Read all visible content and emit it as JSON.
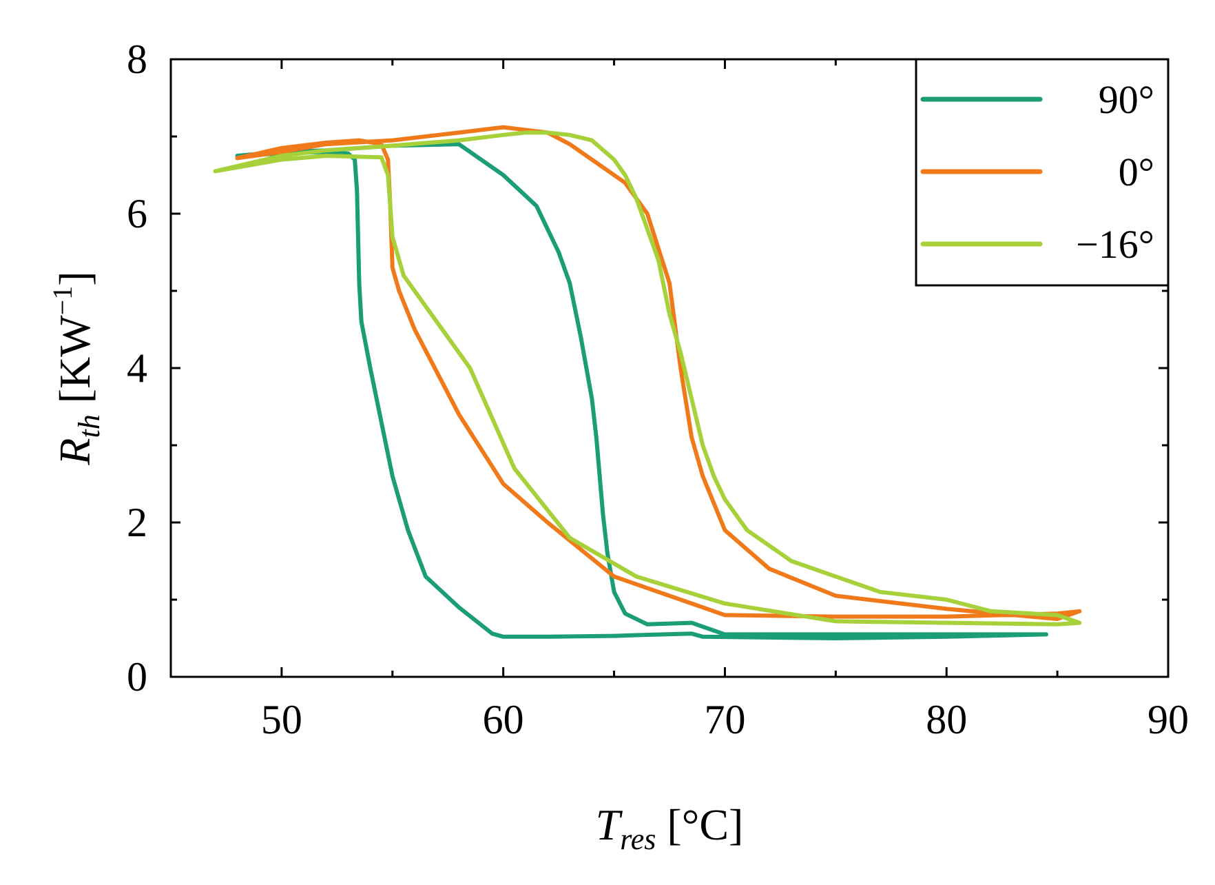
{
  "chart_data": {
    "type": "line",
    "title": "",
    "xlabel": {
      "main": "T",
      "sub": "res",
      "unit": " [°C]"
    },
    "ylabel": {
      "main": "R",
      "sub": "th",
      "unit": " [KW",
      "sup": "−1",
      "close": "]"
    },
    "xlim": [
      45,
      90
    ],
    "ylim": [
      0,
      8
    ],
    "xticks": [
      50,
      60,
      70,
      80,
      90
    ],
    "yticks": [
      0,
      2,
      4,
      6,
      8
    ],
    "x_minor_ticks": [
      55,
      65,
      75,
      85
    ],
    "y_minor_ticks": [
      1,
      3,
      5,
      7
    ],
    "grid": false,
    "legend_position": "top-right",
    "series": [
      {
        "name": "90°",
        "color": "#1b9e77",
        "x": [
          48,
          50,
          52,
          53,
          53.3,
          53.4,
          53.5,
          53.6,
          54,
          55,
          55.7,
          56.5,
          58,
          59.5,
          60,
          62,
          65,
          66,
          68.5,
          69,
          75,
          80,
          84.5,
          84.5,
          80,
          75,
          70,
          68.5,
          68.5,
          66.5,
          65.5,
          65,
          64.7,
          64.5,
          64.2,
          64,
          63.5,
          63,
          62.5,
          61.5,
          60,
          58,
          55,
          52,
          50,
          48
        ],
        "y": [
          6.75,
          6.78,
          6.8,
          6.78,
          6.7,
          6.3,
          5.1,
          4.6,
          4.0,
          2.6,
          1.9,
          1.3,
          0.9,
          0.56,
          0.52,
          0.52,
          0.53,
          0.54,
          0.56,
          0.52,
          0.5,
          0.52,
          0.55,
          0.55,
          0.55,
          0.55,
          0.55,
          0.7,
          0.7,
          0.68,
          0.82,
          1.1,
          1.6,
          2.1,
          3.1,
          3.6,
          4.4,
          5.1,
          5.5,
          6.1,
          6.5,
          6.9,
          6.88,
          6.82,
          6.8,
          6.75
        ]
      },
      {
        "name": "0°",
        "color": "#f07a1a",
        "x": [
          48,
          50,
          52,
          53.5,
          54.5,
          54.8,
          54.9,
          55,
          55.3,
          56,
          58,
          60,
          62,
          65,
          70,
          75,
          80,
          85,
          86,
          86,
          85,
          80,
          75,
          72,
          70,
          69,
          68.5,
          68,
          67.5,
          66.5,
          65.5,
          64,
          63,
          62,
          60,
          58,
          55,
          52,
          50,
          48
        ],
        "y": [
          6.72,
          6.85,
          6.92,
          6.95,
          6.9,
          6.7,
          6.1,
          5.3,
          5.0,
          4.5,
          3.4,
          2.5,
          2.0,
          1.3,
          0.8,
          0.78,
          0.78,
          0.82,
          0.85,
          0.85,
          0.75,
          0.88,
          1.05,
          1.4,
          1.9,
          2.6,
          3.1,
          4.0,
          5.1,
          6.0,
          6.4,
          6.7,
          6.9,
          7.05,
          7.12,
          7.05,
          6.95,
          6.9,
          6.8,
          6.72
        ]
      },
      {
        "name": "−16°",
        "color": "#a6d13a",
        "x": [
          47,
          50,
          52,
          54.5,
          54.8,
          55,
          55.5,
          56.5,
          58.5,
          60.5,
          63,
          66,
          70,
          75,
          80,
          85,
          86,
          86,
          85,
          82,
          80,
          77,
          75,
          73,
          71,
          70,
          69.5,
          69,
          68.5,
          68,
          67.5,
          67,
          66.5,
          66,
          65.5,
          65,
          64,
          63,
          62,
          61,
          60,
          58,
          55,
          52,
          50,
          47
        ],
        "y": [
          6.55,
          6.7,
          6.75,
          6.73,
          6.5,
          5.7,
          5.2,
          4.8,
          4.0,
          2.7,
          1.8,
          1.3,
          0.95,
          0.72,
          0.7,
          0.68,
          0.7,
          0.7,
          0.8,
          0.85,
          1.0,
          1.1,
          1.3,
          1.5,
          1.9,
          2.3,
          2.6,
          3.0,
          3.6,
          4.2,
          4.7,
          5.4,
          5.8,
          6.2,
          6.5,
          6.7,
          6.95,
          7.02,
          7.05,
          7.05,
          7.02,
          6.95,
          6.88,
          6.82,
          6.75,
          6.55
        ]
      }
    ]
  }
}
